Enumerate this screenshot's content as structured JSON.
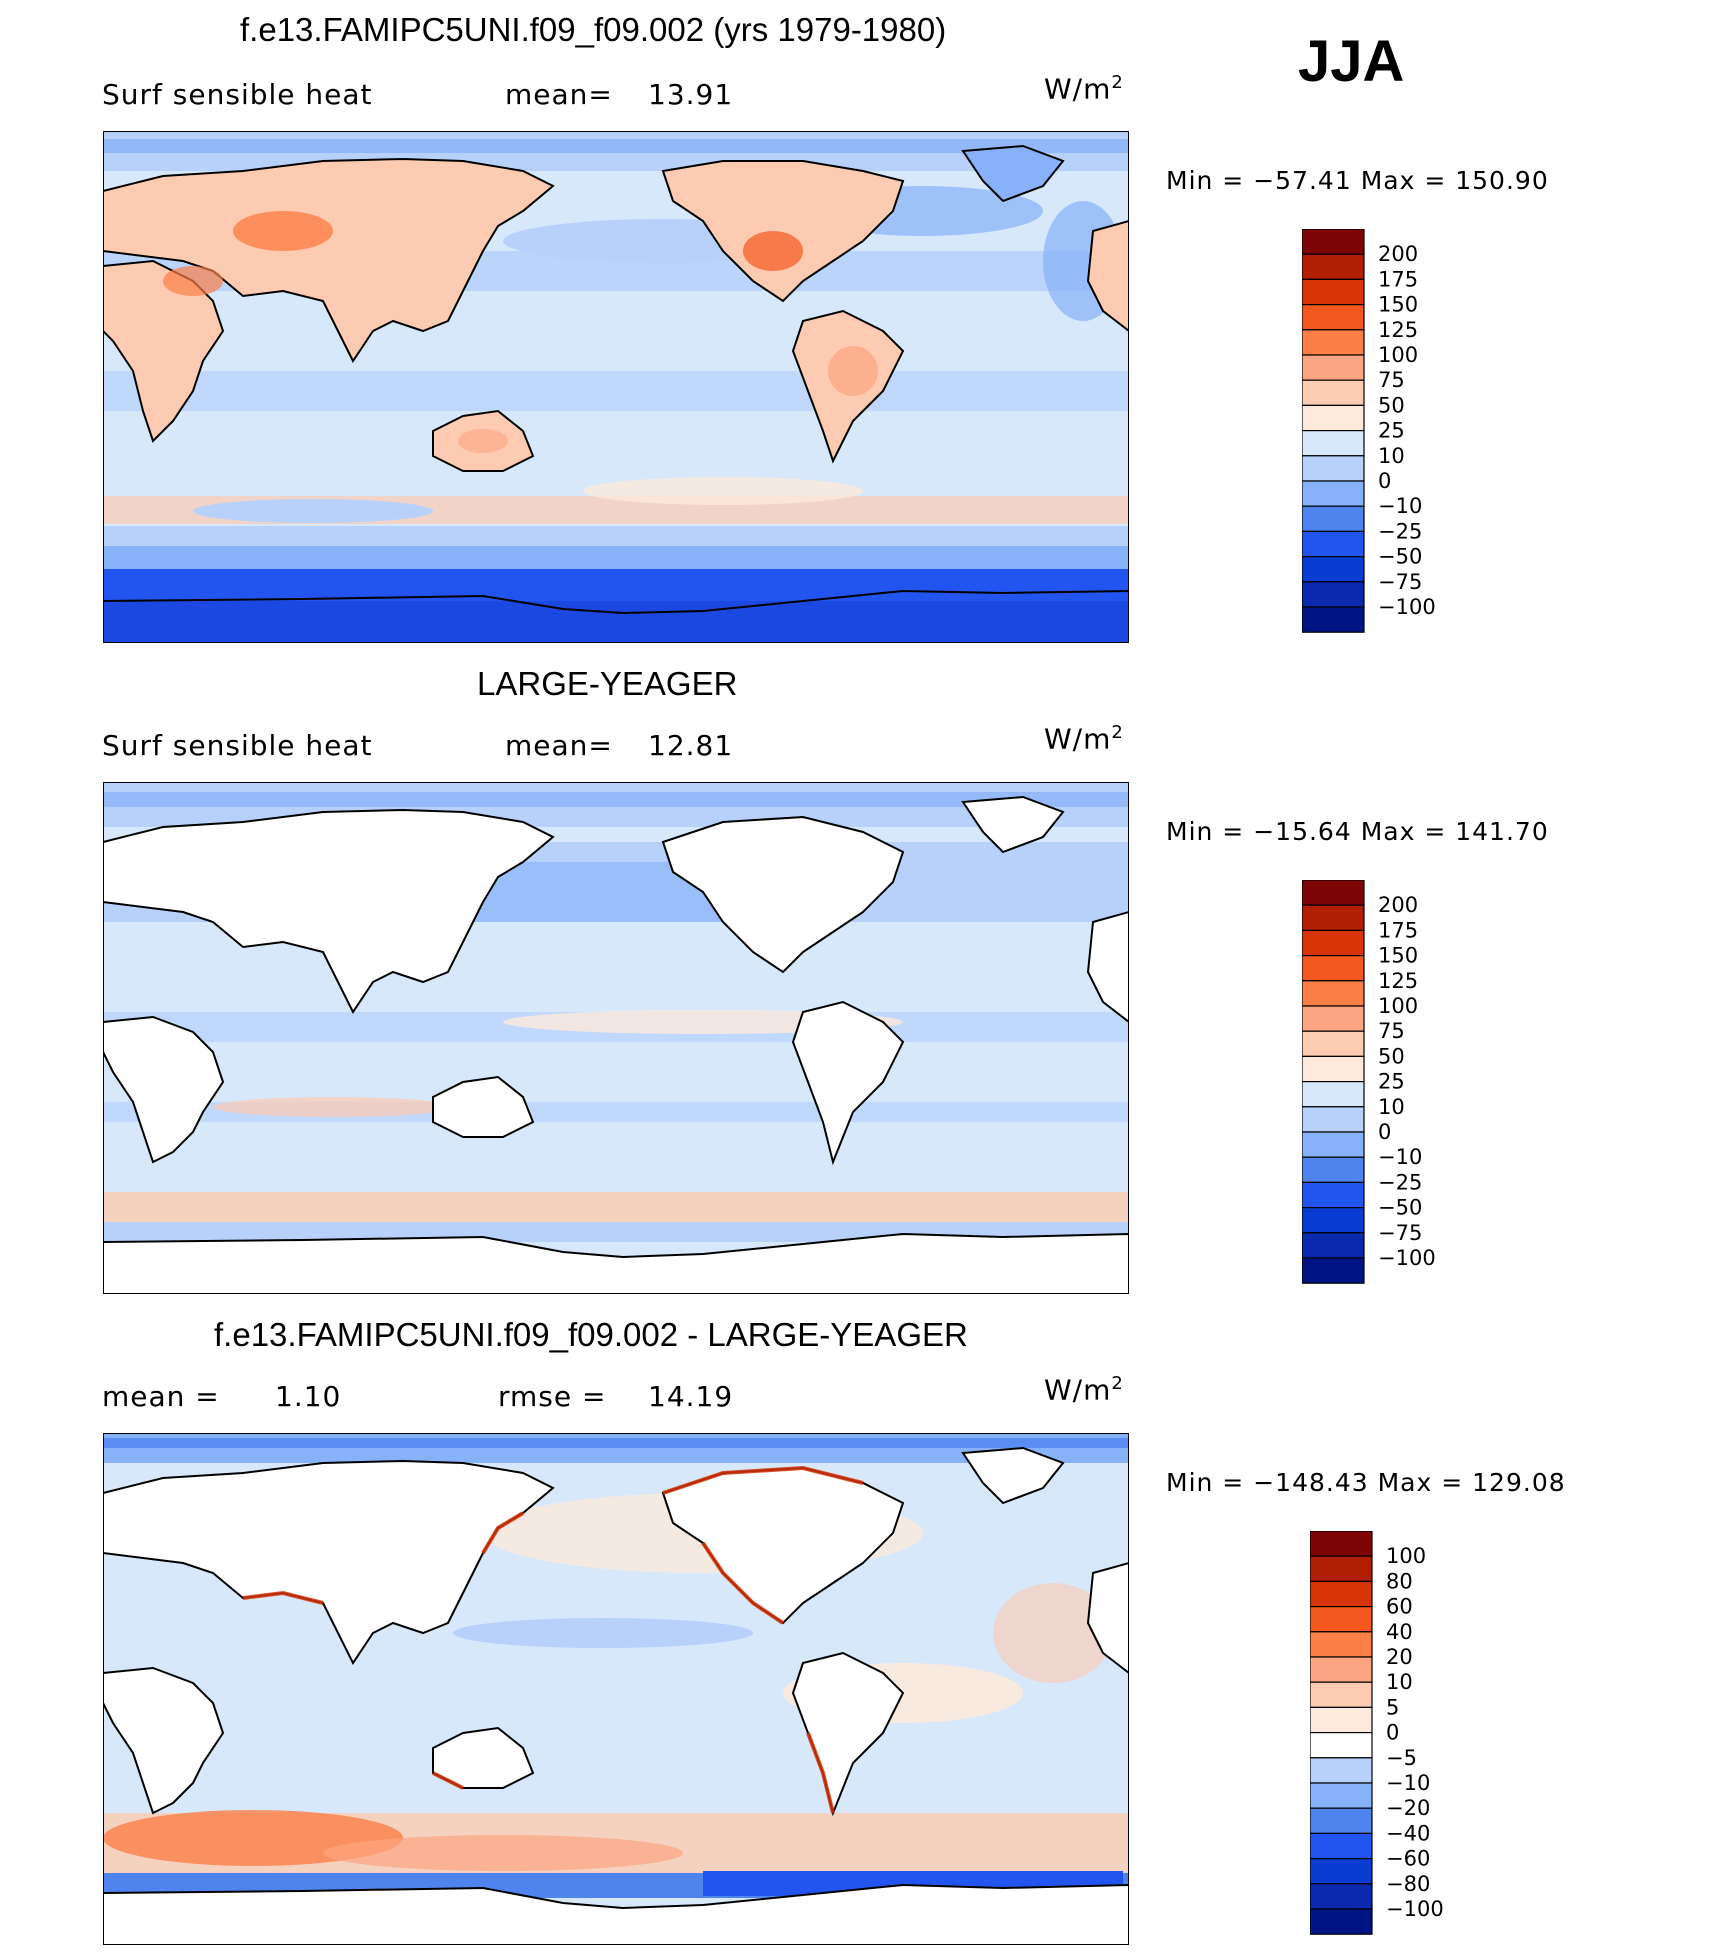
{
  "season": "JJA",
  "panels": [
    {
      "title": "f.e13.FAMIPC5UNI.f09_f09.002 (yrs 1979-1980)",
      "left_label": "Surf  sensible  heat",
      "stat1_label": "mean=",
      "stat1_value": "13.91",
      "stat2_label": "",
      "stat2_value": "",
      "units": "W/m",
      "units_exp": "2",
      "min_label": "Min  =",
      "min_value": "−57.41",
      "max_label": "Max  =",
      "max_value": "150.90",
      "land_filled": true,
      "colorbar": {
        "labels": [
          "200",
          "175",
          "150",
          "125",
          "100",
          "75",
          "50",
          "25",
          "10",
          "0",
          "−10",
          "−25",
          "−50",
          "−75",
          "−100"
        ],
        "colors": [
          "#7e0505",
          "#b11e02",
          "#d63306",
          "#f4581f",
          "#fb7f47",
          "#fca582",
          "#fdcab2",
          "#fdeadc",
          "#d8e8fb",
          "#b7d1fb",
          "#87b1f8",
          "#4f84ef",
          "#2255ef",
          "#083cd2",
          "#0a29ae",
          "#001583"
        ]
      }
    },
    {
      "title": "LARGE-YEAGER",
      "left_label": "Surf  sensible  heat",
      "stat1_label": "mean=",
      "stat1_value": "12.81",
      "stat2_label": "",
      "stat2_value": "",
      "units": "W/m",
      "units_exp": "2",
      "min_label": "Min  =",
      "min_value": "−15.64",
      "max_label": "Max  =",
      "max_value": "141.70",
      "land_filled": false,
      "colorbar": {
        "labels": [
          "200",
          "175",
          "150",
          "125",
          "100",
          "75",
          "50",
          "25",
          "10",
          "0",
          "−10",
          "−25",
          "−50",
          "−75",
          "−100"
        ],
        "colors": [
          "#7e0505",
          "#b11e02",
          "#d63306",
          "#f4581f",
          "#fb7f47",
          "#fca582",
          "#fdcab2",
          "#fdeadc",
          "#d8e8fb",
          "#b7d1fb",
          "#87b1f8",
          "#4f84ef",
          "#2255ef",
          "#083cd2",
          "#0a29ae",
          "#001583"
        ]
      }
    },
    {
      "title": "f.e13.FAMIPC5UNI.f09_f09.002 - LARGE-YEAGER",
      "left_label": "mean  =",
      "stat1_label": "1.10",
      "stat1_value": "",
      "stat2_label": "rmse  =",
      "stat2_value": "14.19",
      "units": "W/m",
      "units_exp": "2",
      "min_label": "Min  =",
      "min_value": "−148.43",
      "max_label": "Max  =",
      "max_value": "129.08",
      "land_filled": false,
      "colorbar": {
        "labels": [
          "100",
          "80",
          "60",
          "40",
          "20",
          "10",
          "5",
          "0",
          "−5",
          "−10",
          "−20",
          "−40",
          "−60",
          "−80",
          "−100"
        ],
        "colors": [
          "#7e0505",
          "#b11e02",
          "#d63306",
          "#f4581f",
          "#fb7f47",
          "#fca582",
          "#fdcab2",
          "#fdeadc",
          "#ffffff",
          "#b7d1fb",
          "#87b1f8",
          "#4f84ef",
          "#2255ef",
          "#083cd2",
          "#0a29ae",
          "#001583"
        ]
      }
    }
  ]
}
